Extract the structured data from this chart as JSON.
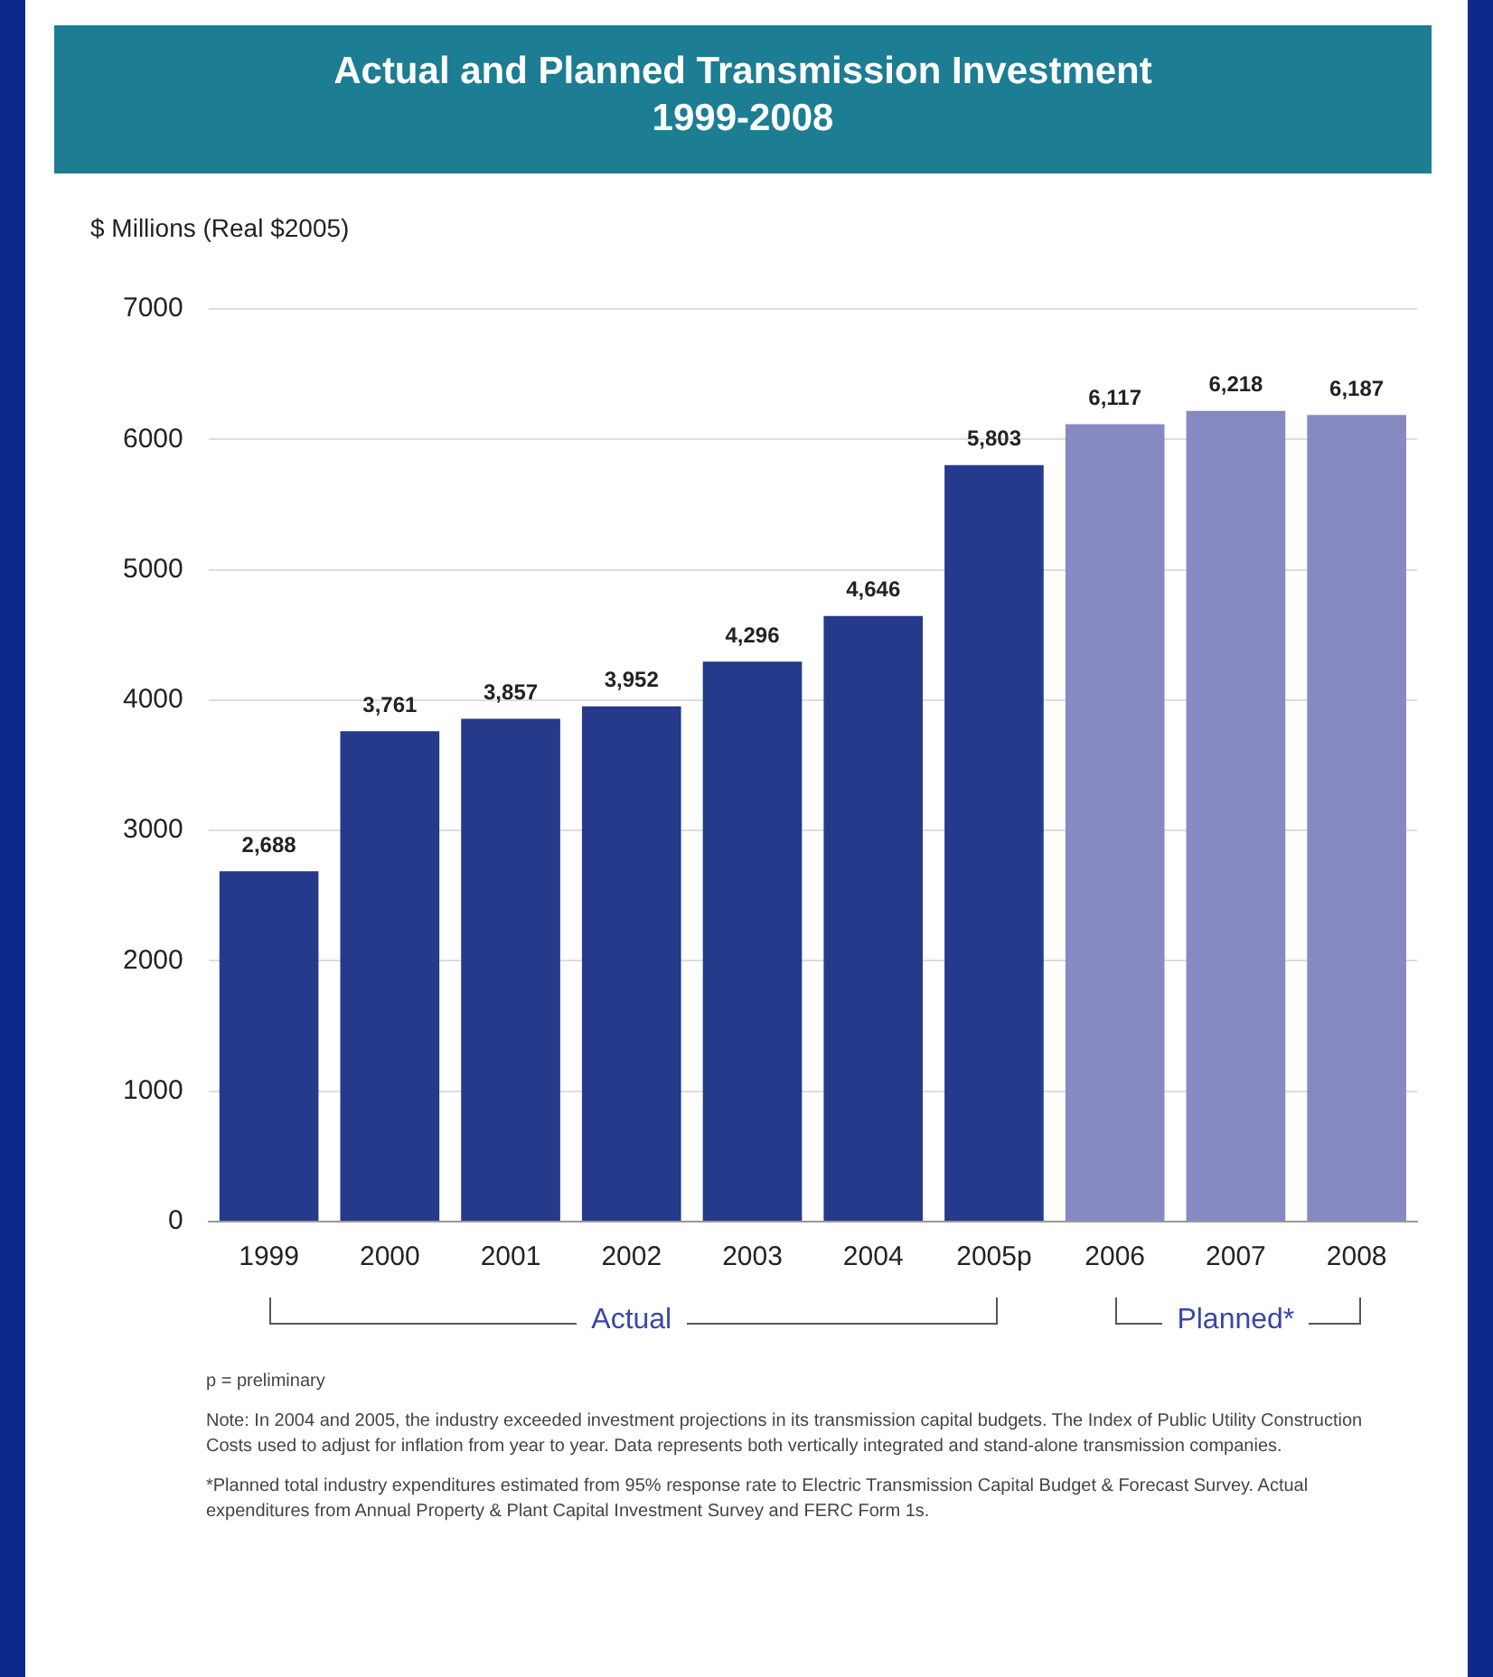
{
  "chart_data": {
    "type": "bar",
    "title": "Actual and Planned Transmission Investment",
    "subtitle": "1999-2008",
    "ylabel": "$ Millions (Real $2005)",
    "categories": [
      "1999",
      "2000",
      "2001",
      "2002",
      "2003",
      "2004",
      "2005p",
      "2006",
      "2007",
      "2008"
    ],
    "values": [
      2688,
      3761,
      3857,
      3952,
      4296,
      4646,
      5803,
      6117,
      6218,
      6187
    ],
    "colors": [
      "#253a8a",
      "#253a8a",
      "#253a8a",
      "#253a8a",
      "#253a8a",
      "#253a8a",
      "#253a8a",
      "#8789c2",
      "#8789c2",
      "#8789c2"
    ],
    "ylim": [
      0,
      7000
    ],
    "yticks": [
      0,
      1000,
      2000,
      3000,
      4000,
      5000,
      6000,
      7000
    ],
    "grid": "y",
    "value_labels": [
      "2,688",
      "3,761",
      "3,857",
      "3,952",
      "4,296",
      "4,646",
      "5,803",
      "6,117",
      "6,218",
      "6,187"
    ],
    "annotations": [
      "Actual",
      "Planned*",
      "p = preliminary",
      "Note: In 2004 and 2005, the industry exceeded investment projections in its transmission capital budgets. The Index of Public Utility Construction Costs used to adjust for inflation from year to year. Data represents both vertically integrated and stand-alone transmission companies.",
      "*Planned total industry expenditures estimated from 95% response rate to Electric Transmission Capital Budget & Forecast Survey. Actual expenditures from Annual Property & Plant Capital Investment Survey and FERC Form 1s."
    ]
  }
}
